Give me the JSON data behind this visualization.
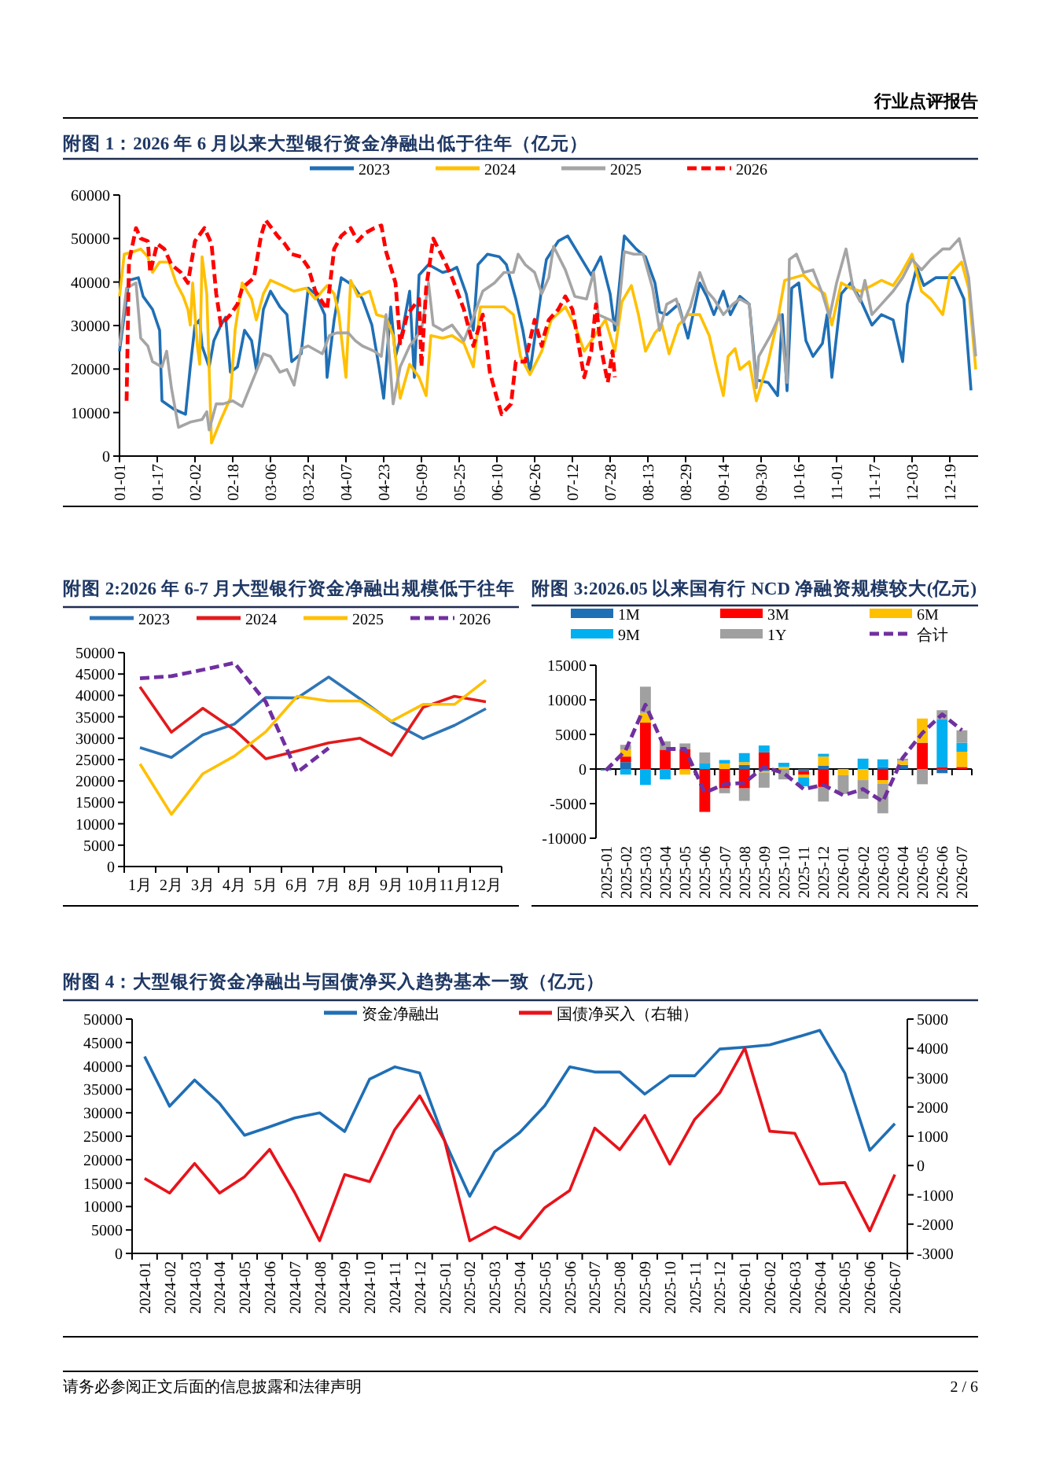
{
  "chart_data": [
    {
      "type": "line",
      "title": "附图 1：2026 年 6 月以来大型银行资金净融出低于往年（亿元）",
      "annotations": [
        "行业点评报告"
      ],
      "legend": "top",
      "xlim": [
        "--01-01",
        "--12-31"
      ],
      "xticks": [
        {
          "value": "--01-01",
          "label": "01-01"
        },
        {
          "value": "--01-17",
          "label": "01-17"
        },
        {
          "value": "--02-02",
          "label": "02-02"
        },
        {
          "value": "--02-18",
          "label": "02-18"
        },
        {
          "value": "--03-06",
          "label": "03-06"
        },
        {
          "value": "--03-22",
          "label": "03-22"
        },
        {
          "value": "--04-07",
          "label": "04-07"
        },
        {
          "value": "--04-23",
          "label": "04-23"
        },
        {
          "value": "--05-09",
          "label": "05-09"
        },
        {
          "value": "--05-25",
          "label": "05-25"
        },
        {
          "value": "--06-10",
          "label": "06-10"
        },
        {
          "value": "--06-26",
          "label": "06-26"
        },
        {
          "value": "--07-12",
          "label": "07-12"
        },
        {
          "value": "--07-28",
          "label": "07-28"
        },
        {
          "value": "--08-13",
          "label": "08-13"
        },
        {
          "value": "--08-29",
          "label": "08-29"
        },
        {
          "value": "--09-14",
          "label": "09-14"
        },
        {
          "value": "--09-30",
          "label": "09-30"
        },
        {
          "value": "--10-16",
          "label": "10-16"
        },
        {
          "value": "--11-01",
          "label": "11-01"
        },
        {
          "value": "--11-17",
          "label": "11-17"
        },
        {
          "value": "--12-03",
          "label": "12-03"
        },
        {
          "value": "--12-19",
          "label": "12-19"
        }
      ],
      "ylim": [
        0,
        60000
      ],
      "yticks": [
        0,
        10000,
        20000,
        30000,
        40000,
        50000,
        60000
      ],
      "series": [
        {
          "name": "2023",
          "color": "#1f6fb5",
          "x": [
            "--01-01",
            "--01-05",
            "--01-09",
            "--01-11",
            "--01-15",
            "--01-18",
            "--01-19",
            "--01-24",
            "--01-29",
            "--01-31",
            "--02-02",
            "--02-04",
            "--02-05",
            "--02-08",
            "--02-10",
            "--02-13",
            "--02-15",
            "--02-17",
            "--02-20",
            "--02-23",
            "--02-26",
            "--02-28",
            "--03-03",
            "--03-06",
            "--03-10",
            "--03-13",
            "--03-15",
            "--03-19",
            "--03-22",
            "--03-25",
            "--03-29",
            "--03-30",
            "--04-02",
            "--04-05",
            "--04-10",
            "--04-14",
            "--04-18",
            "--04-21",
            "--04-23",
            "--04-26",
            "--04-28",
            "--05-01",
            "--05-04",
            "--05-06",
            "--05-08",
            "--05-12",
            "--05-18",
            "--05-22",
            "--05-24",
            "--05-28",
            "--05-31",
            "--06-02",
            "--06-06",
            "--06-11",
            "--06-14",
            "--06-18",
            "--06-21",
            "--06-24",
            "--06-29",
            "--07-01",
            "--07-06",
            "--07-10",
            "--07-14",
            "--07-20",
            "--07-24",
            "--07-28",
            "--07-30",
            "--08-03",
            "--08-08",
            "--08-12",
            "--08-16",
            "--08-18",
            "--08-21",
            "--08-26",
            "--08-30",
            "--09-04",
            "--09-07",
            "--09-10",
            "--09-14",
            "--09-17",
            "--09-21",
            "--09-25",
            "--09-28",
            "--10-03",
            "--10-07",
            "--10-09",
            "--10-11",
            "--10-13",
            "--10-16",
            "--10-19",
            "--10-22",
            "--10-26",
            "--10-28",
            "--10-30",
            "--11-03",
            "--11-07",
            "--11-11",
            "--11-16",
            "--11-20",
            "--11-25",
            "--11-29",
            "--12-01",
            "--12-05",
            "--12-08",
            "--12-13",
            "--12-17",
            "--12-21",
            "--12-25",
            "--12-28"
          ],
          "values": [
            24100,
            40400,
            41000,
            36700,
            33700,
            28900,
            12700,
            10800,
            9600,
            20500,
            30100,
            31300,
            25300,
            20500,
            26500,
            30100,
            31900,
            19300,
            20500,
            28900,
            26500,
            19900,
            33700,
            37900,
            34300,
            32500,
            21700,
            23500,
            38600,
            37300,
            32500,
            18100,
            31300,
            41000,
            39200,
            36100,
            30100,
            20500,
            13300,
            34300,
            22900,
            28900,
            37900,
            18100,
            41600,
            44000,
            42200,
            42800,
            43400,
            37300,
            28900,
            44000,
            46400,
            45800,
            44000,
            36100,
            28900,
            19300,
            38600,
            45200,
            49400,
            50600,
            47000,
            41600,
            45800,
            37300,
            28900,
            50600,
            47600,
            45800,
            39800,
            33100,
            32500,
            34900,
            27100,
            39800,
            36700,
            32500,
            37900,
            32500,
            36700,
            34900,
            17500,
            16900,
            13900,
            32500,
            15000,
            38600,
            39800,
            26500,
            22900,
            25900,
            32500,
            18100,
            37300,
            39800,
            36100,
            30100,
            32500,
            31300,
            21700,
            34900,
            43400,
            39200,
            41000,
            41000,
            41000,
            36100,
            15100
          ]
        },
        {
          "name": "2024",
          "color": "#ffc000",
          "x": [
            "--01-01",
            "--01-03",
            "--01-07",
            "--01-10",
            "--01-13",
            "--01-15",
            "--01-18",
            "--01-22",
            "--01-25",
            "--01-28",
            "--01-30",
            "--01-31",
            "--02-01",
            "--02-03",
            "--02-04",
            "--02-05",
            "--02-07",
            "--02-09",
            "--02-13",
            "--02-17",
            "--02-19",
            "--02-22",
            "--02-26",
            "--02-28",
            "--03-03",
            "--03-06",
            "--03-11",
            "--03-16",
            "--03-21",
            "--03-25",
            "--03-30",
            "--04-02",
            "--04-04",
            "--04-07",
            "--04-09",
            "--04-12",
            "--04-17",
            "--04-20",
            "--04-24",
            "--04-27",
            "--04-30",
            "--05-04",
            "--05-08",
            "--05-11",
            "--05-13",
            "--05-18",
            "--05-22",
            "--05-27",
            "--05-31",
            "--06-03",
            "--06-09",
            "--06-13",
            "--06-17",
            "--06-20",
            "--06-24",
            "--06-29",
            "--07-03",
            "--07-09",
            "--07-13",
            "--07-17",
            "--07-20",
            "--07-26",
            "--07-30",
            "--08-02",
            "--08-06",
            "--08-09",
            "--08-12",
            "--08-16",
            "--08-19",
            "--08-22",
            "--08-26",
            "--08-30",
            "--09-04",
            "--09-08",
            "--09-11",
            "--09-14",
            "--09-16",
            "--09-19",
            "--09-21",
            "--09-25",
            "--09-28",
            "--10-03",
            "--10-07",
            "--10-10",
            "--10-14",
            "--10-18",
            "--10-22",
            "--10-27",
            "--10-30",
            "--11-03",
            "--11-07",
            "--11-11",
            "--11-16",
            "--11-20",
            "--11-25",
            "--11-28",
            "--12-03",
            "--12-07",
            "--12-11",
            "--12-16",
            "--12-19",
            "--12-24",
            "--12-27",
            "--12-30"
          ],
          "values": [
            36700,
            46400,
            47000,
            47600,
            45800,
            42200,
            44600,
            44600,
            39800,
            36700,
            33700,
            30100,
            39800,
            25300,
            21100,
            45800,
            37300,
            3000,
            8400,
            13300,
            28900,
            39800,
            36100,
            31300,
            37300,
            40400,
            39200,
            37900,
            38600,
            36100,
            39200,
            37300,
            32500,
            18100,
            40400,
            36700,
            37900,
            32500,
            31900,
            27700,
            13300,
            21100,
            18100,
            13900,
            27700,
            27100,
            27700,
            25900,
            20500,
            34300,
            34300,
            34300,
            32500,
            22900,
            18700,
            24100,
            31300,
            34300,
            30100,
            24100,
            26500,
            31300,
            24100,
            35500,
            39200,
            32500,
            24100,
            28300,
            30100,
            23500,
            30100,
            32500,
            32500,
            27700,
            20500,
            13900,
            22900,
            24700,
            19900,
            21700,
            12700,
            21700,
            31300,
            40400,
            41000,
            41600,
            39200,
            37300,
            30100,
            39800,
            38600,
            37900,
            39200,
            40400,
            39200,
            41600,
            46400,
            37900,
            36100,
            32500,
            41600,
            44600,
            38600,
            19900
          ]
        },
        {
          "name": "2025",
          "color": "#a5a5a5",
          "x": [
            "--01-01",
            "--01-04",
            "--01-08",
            "--01-10",
            "--01-13",
            "--01-15",
            "--01-19",
            "--01-21",
            "--01-23",
            "--01-26",
            "--01-31",
            "--02-05",
            "--02-07",
            "--02-08",
            "--02-11",
            "--02-14",
            "--02-18",
            "--02-22",
            "--02-27",
            "--03-03",
            "--03-06",
            "--03-10",
            "--03-13",
            "--03-16",
            "--03-19",
            "--03-22",
            "--03-28",
            "--03-31",
            "--04-03",
            "--04-08",
            "--04-11",
            "--04-14",
            "--04-19",
            "--04-22",
            "--04-24",
            "--04-27",
            "--04-30",
            "--05-04",
            "--05-09",
            "--05-12",
            "--05-14",
            "--05-18",
            "--05-22",
            "--05-27",
            "--05-31",
            "--06-04",
            "--06-09",
            "--06-13",
            "--06-17",
            "--06-19",
            "--06-22",
            "--06-26",
            "--06-29",
            "--07-02",
            "--07-04",
            "--07-09",
            "--07-13",
            "--07-18",
            "--07-21",
            "--07-23",
            "--07-28",
            "--07-31",
            "--08-03",
            "--08-07",
            "--08-11",
            "--08-15",
            "--08-18",
            "--08-21",
            "--08-25",
            "--08-28",
            "--08-31",
            "--09-04",
            "--09-07",
            "--09-10",
            "--09-14",
            "--09-18",
            "--09-21",
            "--09-25",
            "--09-28",
            "--09-29",
            "--10-04",
            "--10-08",
            "--10-11",
            "--10-12",
            "--10-15",
            "--10-18",
            "--10-22",
            "--10-26",
            "--10-29",
            "--11-01",
            "--11-05",
            "--11-08",
            "--11-11",
            "--11-13",
            "--11-16",
            "--11-20",
            "--11-25",
            "--11-29",
            "--12-03",
            "--12-07",
            "--12-11",
            "--12-16",
            "--12-19",
            "--12-23",
            "--12-27",
            "--12-30"
          ],
          "values": [
            25300,
            38600,
            39800,
            27100,
            25300,
            21700,
            20500,
            24100,
            15700,
            6600,
            7800,
            8400,
            10200,
            6000,
            12000,
            12000,
            12700,
            11400,
            18100,
            23500,
            22900,
            19300,
            19900,
            16300,
            24700,
            25300,
            23500,
            27700,
            28300,
            28300,
            26500,
            25300,
            24100,
            22900,
            32500,
            12000,
            20500,
            25300,
            28900,
            39800,
            30100,
            28900,
            30100,
            26500,
            31900,
            37900,
            39800,
            42200,
            42200,
            46400,
            44000,
            42200,
            37300,
            41000,
            48200,
            42800,
            36700,
            36100,
            42200,
            32500,
            31300,
            30100,
            47000,
            46400,
            46400,
            38600,
            28900,
            34900,
            36100,
            30700,
            34300,
            42200,
            37900,
            36100,
            32500,
            34900,
            36100,
            34900,
            15700,
            22900,
            27700,
            32500,
            16900,
            45200,
            46400,
            42200,
            42800,
            37300,
            31900,
            39800,
            47600,
            38600,
            35500,
            40400,
            32500,
            34900,
            37900,
            41000,
            45200,
            42800,
            45200,
            47600,
            47600,
            50000,
            41000,
            22900
          ]
        },
        {
          "name": "2026",
          "color": "#ff0000",
          "line_style": "dashed",
          "x": [
            "--01-04",
            "--01-05",
            "--01-08",
            "--01-10",
            "--01-13",
            "--01-14",
            "--01-17",
            "--01-20",
            "--01-23",
            "--01-27",
            "--01-30",
            "--02-02",
            "--02-06",
            "--02-09",
            "--02-11",
            "--02-13",
            "--02-17",
            "--02-20",
            "--02-22",
            "--02-27",
            "--03-02",
            "--03-04",
            "--03-09",
            "--03-12",
            "--03-15",
            "--03-19",
            "--03-22",
            "--03-25",
            "--03-30",
            "--04-02",
            "--04-05",
            "--04-09",
            "--04-12",
            "--04-15",
            "--04-19",
            "--04-22",
            "--04-24",
            "--04-28",
            "--04-30",
            "--05-03",
            "--05-08",
            "--05-09",
            "--05-11",
            "--05-14",
            "--05-19",
            "--05-22",
            "--05-27",
            "--05-31",
            "--06-04",
            "--06-07",
            "--06-10",
            "--06-12",
            "--06-16",
            "--06-18",
            "--06-22",
            "--06-26",
            "--06-29",
            "--06-30",
            "--07-02",
            "--07-06",
            "--07-09",
            "--07-12",
            "--07-14",
            "--07-17",
            "--07-20",
            "--07-22",
            "--07-24",
            "--07-27",
            "--07-29",
            "--07-30"
          ],
          "values": [
            12700,
            44600,
            52400,
            50000,
            49400,
            42200,
            48800,
            47600,
            44000,
            42200,
            39800,
            49400,
            52400,
            48800,
            37300,
            30100,
            32500,
            34900,
            38600,
            41000,
            50600,
            54200,
            50600,
            48800,
            46400,
            45800,
            43400,
            37900,
            33700,
            47600,
            50600,
            52400,
            49400,
            51200,
            52400,
            53000,
            47000,
            39800,
            25900,
            32500,
            36100,
            20500,
            38600,
            50000,
            44600,
            41000,
            33700,
            25300,
            32500,
            19300,
            13300,
            9600,
            12000,
            21700,
            21700,
            31300,
            25300,
            27700,
            31300,
            33700,
            36700,
            33700,
            27700,
            18100,
            24100,
            34900,
            25300,
            16900,
            24100,
            18100
          ]
        }
      ]
    },
    {
      "type": "line",
      "title": "附图 2:2026 年 6-7 月大型银行资金净融出规模低于往年",
      "legend": "top",
      "categories": [
        "1月",
        "2月",
        "3月",
        "4月",
        "5月",
        "6月",
        "7月",
        "8月",
        "9月",
        "10月",
        "11月",
        "12月"
      ],
      "ylim": [
        0,
        50000
      ],
      "yticks": [
        0,
        5000,
        10000,
        15000,
        20000,
        25000,
        30000,
        35000,
        40000,
        45000,
        50000
      ],
      "series": [
        {
          "name": "2023",
          "color": "#2e75b6",
          "values": [
            27800,
            25500,
            30800,
            33300,
            39500,
            39400,
            44300,
            39200,
            33800,
            29900,
            33000,
            36900
          ]
        },
        {
          "name": "2024",
          "color": "#e31a1c",
          "values": [
            42000,
            31400,
            37000,
            32000,
            25200,
            27000,
            28900,
            30000,
            26000,
            37200,
            39800,
            38500
          ]
        },
        {
          "name": "2025",
          "color": "#ffc000",
          "values": [
            24000,
            12200,
            21700,
            25800,
            31500,
            39800,
            38700,
            38700,
            34000,
            37900,
            37900,
            43600
          ]
        },
        {
          "name": "2026",
          "color": "#7030a0",
          "line_style": "dashed",
          "values": [
            44000,
            44500,
            46000,
            47600,
            38500,
            22000,
            27700,
            null,
            null,
            null,
            null,
            null
          ]
        }
      ]
    },
    {
      "type": "bar",
      "stacked": true,
      "title": "附图 3:2026.05 以来国有行 NCD 净融资规模较大(亿元)",
      "legend": "top",
      "categories": [
        "2025-01",
        "2025-02",
        "2025-03",
        "2025-04",
        "2025-05",
        "2025-06",
        "2025-07",
        "2025-08",
        "2025-09",
        "2025-10",
        "2025-11",
        "2025-12",
        "2026-01",
        "2026-02",
        "2026-03",
        "2026-04",
        "2026-05",
        "2026-06",
        "2026-07"
      ],
      "ylim": [
        -10000,
        15000
      ],
      "yticks": [
        -10000,
        -5000,
        0,
        5000,
        10000,
        15000
      ],
      "series": [
        {
          "name": "1M",
          "color": "#1f6fb5",
          "values": [
            -200,
            1000,
            0,
            0,
            0,
            0,
            0,
            600,
            -300,
            0,
            -300,
            500,
            0,
            0,
            300,
            600,
            0,
            -600,
            0
          ]
        },
        {
          "name": "3M",
          "color": "#ff0000",
          "values": [
            0,
            800,
            6700,
            2800,
            2900,
            -6200,
            -2800,
            -2800,
            2400,
            0,
            -500,
            -2600,
            0,
            0,
            -1600,
            0,
            3800,
            300,
            300
          ]
        },
        {
          "name": "6M",
          "color": "#ffc000",
          "values": [
            0,
            1000,
            1400,
            0,
            -800,
            0,
            800,
            400,
            -200,
            300,
            -400,
            1300,
            -900,
            -1600,
            -500,
            600,
            3500,
            0,
            2200
          ]
        },
        {
          "name": "9M",
          "color": "#00b0f0",
          "values": [
            0,
            -800,
            -2300,
            -1500,
            0,
            800,
            500,
            1300,
            1000,
            600,
            -1300,
            400,
            0,
            1500,
            1100,
            0,
            0,
            6900,
            1300
          ]
        },
        {
          "name": "1Y",
          "color": "#a0a0a0",
          "values": [
            0,
            700,
            3800,
            1200,
            800,
            1600,
            -700,
            -1800,
            -2200,
            -1500,
            0,
            -2100,
            -2700,
            -2700,
            -4300,
            300,
            -2200,
            1300,
            1800
          ]
        },
        {
          "name": "合计",
          "type": "line",
          "color": "#7030a0",
          "line_style": "dashed",
          "values": [
            -200,
            2700,
            9300,
            2900,
            2900,
            -3400,
            -2200,
            -2000,
            300,
            -600,
            -2900,
            -2300,
            -3800,
            -2900,
            -4700,
            1600,
            5200,
            7900,
            5600
          ]
        }
      ]
    },
    {
      "type": "line",
      "title": "附图 4：大型银行资金净融出与国债净买入趋势基本一致（亿元）",
      "annotations": [
        "请务必参阅正文后面的信息披露和法律声明",
        "2 / 6"
      ],
      "legend": "top",
      "categories": [
        "2024-01",
        "2024-02",
        "2024-03",
        "2024-04",
        "2024-05",
        "2024-06",
        "2024-07",
        "2024-08",
        "2024-09",
        "2024-10",
        "2024-11",
        "2024-12",
        "2025-01",
        "2025-02",
        "2025-03",
        "2025-04",
        "2025-05",
        "2025-06",
        "2025-07",
        "2025-08",
        "2025-09",
        "2025-10",
        "2025-11",
        "2025-12",
        "2026-01",
        "2026-02",
        "2026-03",
        "2026-04",
        "2026-05",
        "2026-06",
        "2026-07"
      ],
      "ylim": [
        0,
        50000
      ],
      "yticks": [
        0,
        5000,
        10000,
        15000,
        20000,
        25000,
        30000,
        35000,
        40000,
        45000,
        50000
      ],
      "y2lim": [
        -3000,
        5000
      ],
      "y2ticks": [
        -3000,
        -2000,
        -1000,
        0,
        1000,
        2000,
        3000,
        4000,
        5000
      ],
      "series": [
        {
          "name": "资金净融出",
          "color": "#1f6fb5",
          "values": [
            42000,
            31400,
            37000,
            32000,
            25200,
            27000,
            28900,
            30000,
            26000,
            37200,
            39800,
            38500,
            24000,
            12200,
            21700,
            25800,
            31500,
            39800,
            38700,
            38700,
            34000,
            37900,
            37900,
            43600,
            44000,
            44500,
            46000,
            47600,
            38500,
            22000,
            27700
          ]
        },
        {
          "name": "国债净买入（右轴）",
          "color": "#e8131b",
          "axis": "y2",
          "values": [
            -440,
            -940,
            70,
            -940,
            -380,
            550,
            -920,
            -2570,
            -310,
            -550,
            1220,
            2380,
            840,
            -2570,
            -2100,
            -2490,
            -1440,
            -850,
            1280,
            540,
            1710,
            50,
            1580,
            2480,
            4010,
            1170,
            1100,
            -630,
            -580,
            -2230,
            -310
          ]
        }
      ]
    }
  ]
}
